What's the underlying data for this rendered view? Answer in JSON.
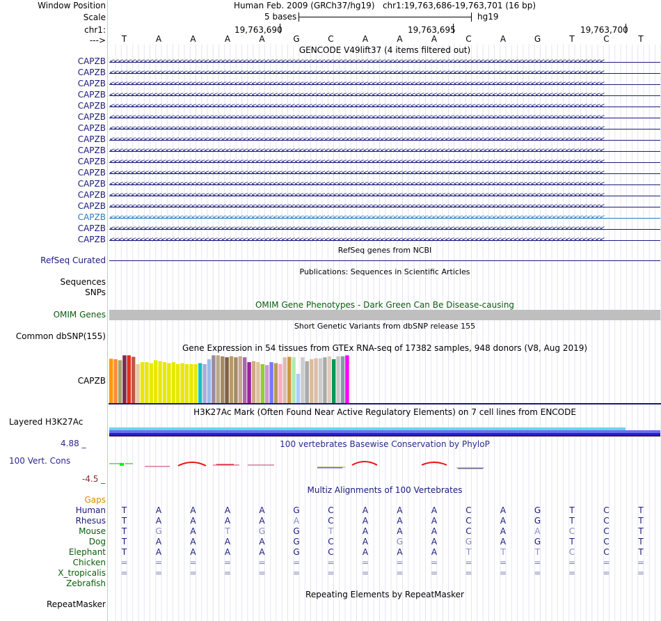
{
  "header": {
    "window_position_label": "Window Position",
    "window_position_text": "Human Feb. 2009 (GRCh37/hg19)   chr1:19,763,686-19,763,701 (16 bp)",
    "scale_label": "Scale",
    "scale_text": "5 bases",
    "scale_assembly": "hg19",
    "chrom_label": "chr1:",
    "ruler_ticks": [
      "19,763,690",
      "19,763,695",
      "19,763,700"
    ],
    "strand_label": "--->",
    "bases": [
      "T",
      "A",
      "A",
      "A",
      "A",
      "G",
      "C",
      "A",
      "A",
      "A",
      "C",
      "A",
      "G",
      "T",
      "C",
      "T"
    ]
  },
  "gencode": {
    "title": "GENCODE V49lift37 (4 items filtered out)",
    "items": [
      "CAPZB",
      "CAPZB",
      "CAPZB",
      "CAPZB",
      "CAPZB",
      "CAPZB",
      "CAPZB",
      "CAPZB",
      "CAPZB",
      "CAPZB",
      "CAPZB",
      "CAPZB",
      "CAPZB",
      "CAPZB",
      "CAPZB",
      "CAPZB",
      "CAPZB"
    ],
    "highlight_index": 14
  },
  "refseq": {
    "title": "RefSeq genes from NCBI",
    "label": "RefSeq Curated"
  },
  "publications": {
    "title": "Publications: Sequences in Scientific Articles",
    "label1": "Sequences",
    "label2": "SNPs"
  },
  "omim": {
    "title": "OMIM Gene Phenotypes - Dark Green Can Be Disease-causing",
    "label": "OMIM Genes"
  },
  "dbsnp": {
    "title": "Short Genetic Variants from dbSNP release 155",
    "label": "Common dbSNP(155)"
  },
  "gtex": {
    "title": "Gene Expression in 54 tissues from GTEx RNA-seq of 17382 samples, 948 donors (V8, Aug 2019)",
    "label": "CAPZB",
    "values": [
      0.91,
      0.9,
      0.88,
      0.98,
      0.98,
      0.95,
      0.8,
      0.84,
      0.84,
      0.82,
      0.88,
      0.86,
      0.84,
      0.82,
      0.84,
      0.8,
      0.82,
      0.8,
      0.8,
      0.8,
      0.82,
      0.8,
      0.9,
      0.98,
      0.98,
      0.96,
      0.94,
      0.96,
      0.94,
      0.96,
      0.94,
      0.84,
      0.86,
      0.84,
      0.8,
      0.78,
      0.84,
      0.82,
      0.8,
      0.94,
      0.95,
      0.94,
      0.6,
      0.94,
      0.86,
      0.9,
      0.92,
      0.92,
      0.94,
      0.96,
      0.9,
      0.96,
      0.96,
      0.98
    ],
    "colors": [
      "#ff9a00",
      "#ff8a3a",
      "#a5a56c",
      "#7b2950",
      "#e0301a",
      "#bb5a4a",
      "#e7c8a8",
      "#e8e800",
      "#e8e800",
      "#e8e800",
      "#e8e800",
      "#e8e800",
      "#e8e800",
      "#e8e800",
      "#e8e800",
      "#e8e800",
      "#e8e800",
      "#e8e800",
      "#e8e800",
      "#e8e800",
      "#18c0c0",
      "#aaaadd",
      "#99bbee",
      "#9a8aa0",
      "#b9a98a",
      "#a48a66",
      "#806040",
      "#bb9966",
      "#a48a66",
      "#c8a88a",
      "#aa66aa",
      "#992299",
      "#ccaa88",
      "#dec0a0",
      "#99cc33",
      "#cc99cc",
      "#7777ff",
      "#bb9955",
      "#ffaabb",
      "#dcbeaa",
      "#cc9944",
      "#b3e8b3",
      "#aaccff",
      "#cccccc",
      "#aaaaaa",
      "#ddbb99",
      "#dcbeaa",
      "#cccccc",
      "#aaaaaa",
      "#ddccbb",
      "#009955",
      "#c8c8c8",
      "#8899aa",
      "#ff00ff"
    ]
  },
  "h3k27ac": {
    "title": "H3K27Ac Mark (Often Found Near Active Regulatory Elements) on 7 cell lines from ENCODE",
    "label": "Layered H3K27Ac"
  },
  "conservation": {
    "title": "100 vertebrates Basewise Conservation by PhyloP",
    "label": "100 Vert. Cons",
    "max_label": "4.88 _",
    "min_label": "-4.5 _"
  },
  "multiz": {
    "title": "Multiz Alignments of 100 Vertebrates",
    "gaps_label": "Gaps",
    "species": [
      {
        "name": "Human",
        "bases": [
          "T",
          "A",
          "A",
          "A",
          "A",
          "G",
          "C",
          "A",
          "A",
          "A",
          "C",
          "A",
          "G",
          "T",
          "C",
          "T"
        ]
      },
      {
        "name": "Rhesus",
        "bases": [
          "T",
          "A",
          "A",
          "A",
          "A",
          "A",
          "C",
          "A",
          "A",
          "A",
          "C",
          "A",
          "G",
          "T",
          "C",
          "T"
        ]
      },
      {
        "name": "Mouse",
        "bases": [
          "T",
          "G",
          "A",
          "T",
          "G",
          "G",
          "T",
          "A",
          "A",
          "A",
          "C",
          "A",
          "A",
          "C",
          "C",
          "T"
        ]
      },
      {
        "name": "Dog",
        "bases": [
          "T",
          "A",
          "A",
          "A",
          "A",
          "G",
          "C",
          "A",
          "G",
          "A",
          "G",
          "A",
          "G",
          "T",
          "C",
          "T"
        ]
      },
      {
        "name": "Elephant",
        "bases": [
          "T",
          "A",
          "A",
          "A",
          "A",
          "G",
          "C",
          "A",
          "A",
          "A",
          "T",
          "T",
          "T",
          "C",
          "C",
          "T"
        ]
      },
      {
        "name": "Chicken",
        "bases": [
          "=",
          "=",
          "=",
          "=",
          "=",
          "=",
          "=",
          "=",
          "=",
          "=",
          "=",
          "=",
          "=",
          "=",
          "=",
          "="
        ]
      },
      {
        "name": "X_tropicalis",
        "bases": [
          "=",
          "=",
          "=",
          "=",
          "=",
          "=",
          "=",
          "=",
          "=",
          "=",
          "=",
          "=",
          "=",
          "=",
          "=",
          "="
        ]
      },
      {
        "name": "Zebrafish",
        "bases": []
      }
    ]
  },
  "repeatmasker": {
    "title": "Repeating Elements by RepeatMasker",
    "label": "RepeatMasker"
  },
  "colors": {
    "gencode": "#1a1a7a",
    "gencode_highlight": "#2e79b8",
    "omim": "#0b5c0b",
    "h3k27ac_bar": "#2222cc",
    "cons_label": "#2a2a8a",
    "gaps": "#dd8800",
    "species": "#0b5c0b",
    "mismatch": "#7a7ab0",
    "match": "#1a1a7a"
  }
}
